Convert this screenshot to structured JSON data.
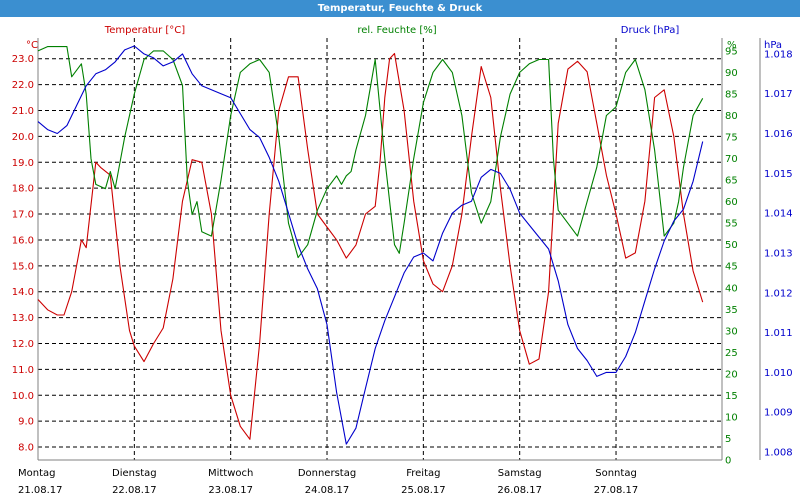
{
  "window": {
    "title": "Temperatur, Feuchte & Druck"
  },
  "chart_data": {
    "type": "line",
    "title": "Temperatur, Feuchte & Druck",
    "x_range": [
      0,
      7.1
    ],
    "grid": true,
    "x_axis": {
      "ticks": [
        {
          "day": "Montag",
          "date": "21.08.17"
        },
        {
          "day": "Dienstag",
          "date": "22.08.17"
        },
        {
          "day": "Mittwoch",
          "date": "23.08.17"
        },
        {
          "day": "Donnerstag",
          "date": "24.08.17"
        },
        {
          "day": "Freitag",
          "date": "25.08.17"
        },
        {
          "day": "Samstag",
          "date": "26.08.17"
        },
        {
          "day": "Sonntag",
          "date": "27.08.17"
        }
      ]
    },
    "axes": {
      "temperature": {
        "label": "Temperatur [°C]",
        "unit": "°C",
        "color": "#cc0000",
        "range": [
          7.5,
          23.8
        ],
        "ticks": [
          "8.0",
          "9.0",
          "10.0",
          "11.0",
          "12.0",
          "13.0",
          "14.0",
          "15.0",
          "16.0",
          "17.0",
          "18.0",
          "19.0",
          "20.0",
          "21.0",
          "22.0",
          "23.0"
        ]
      },
      "humidity": {
        "label": "rel. Feuchte [%]",
        "unit": "%",
        "color": "#008000",
        "range": [
          0,
          98
        ],
        "ticks": [
          "0",
          "5",
          "10",
          "15",
          "20",
          "25",
          "30",
          "35",
          "40",
          "45",
          "50",
          "55",
          "60",
          "65",
          "70",
          "75",
          "80",
          "85",
          "90",
          "95"
        ]
      },
      "pressure": {
        "label": "Druck [hPa]",
        "unit": "hPa",
        "color": "#0000cc",
        "range": [
          1007.8,
          1018.4
        ],
        "ticks": [
          "1.008",
          "1.009",
          "1.010",
          "1.011",
          "1.012",
          "1.013",
          "1.014",
          "1.015",
          "1.016",
          "1.017",
          "1.018"
        ]
      }
    },
    "series": [
      {
        "name": "Temperatur [°C]",
        "axis": "temperature",
        "color": "#cc0000",
        "x": [
          0,
          0.1,
          0.2,
          0.27,
          0.35,
          0.45,
          0.5,
          0.6,
          0.65,
          0.75,
          0.85,
          0.95,
          1.0,
          1.1,
          1.2,
          1.3,
          1.4,
          1.5,
          1.6,
          1.7,
          1.8,
          1.9,
          2.0,
          2.1,
          2.2,
          2.3,
          2.4,
          2.5,
          2.6,
          2.7,
          2.8,
          2.9,
          3.0,
          3.1,
          3.2,
          3.3,
          3.4,
          3.5,
          3.55,
          3.6,
          3.65,
          3.7,
          3.8,
          3.9,
          4.0,
          4.1,
          4.2,
          4.3,
          4.4,
          4.5,
          4.6,
          4.7,
          4.8,
          4.9,
          5.0,
          5.1,
          5.2,
          5.3,
          5.4,
          5.5,
          5.6,
          5.7,
          5.8,
          5.9,
          6.0,
          6.1,
          6.2,
          6.3,
          6.4,
          6.5,
          6.6,
          6.7,
          6.8,
          6.9
        ],
        "y": [
          13.7,
          13.3,
          13.1,
          13.1,
          14.0,
          16.0,
          15.7,
          19.0,
          18.8,
          18.5,
          15.0,
          12.5,
          11.9,
          11.3,
          12.0,
          12.6,
          14.5,
          17.5,
          19.1,
          19.0,
          17.0,
          12.5,
          10.0,
          8.8,
          8.3,
          12.0,
          17.0,
          21.0,
          22.3,
          22.3,
          19.5,
          17.0,
          16.5,
          16.0,
          15.3,
          15.8,
          17.0,
          17.3,
          19.0,
          21.5,
          23.0,
          23.2,
          21.0,
          17.5,
          15.2,
          14.3,
          14.0,
          15.0,
          17.0,
          20.0,
          22.7,
          21.5,
          18.0,
          15.0,
          12.5,
          11.2,
          11.4,
          14.0,
          20.5,
          22.6,
          22.9,
          22.5,
          20.5,
          18.5,
          17.0,
          15.3,
          15.5,
          17.5,
          21.5,
          21.8,
          20.0,
          17.0,
          14.8,
          13.6
        ]
      },
      {
        "name": "rel. Feuchte [%]",
        "axis": "humidity",
        "color": "#008000",
        "x": [
          0,
          0.1,
          0.2,
          0.3,
          0.35,
          0.45,
          0.5,
          0.55,
          0.6,
          0.7,
          0.75,
          0.8,
          0.9,
          1.0,
          1.1,
          1.2,
          1.3,
          1.4,
          1.5,
          1.55,
          1.6,
          1.65,
          1.7,
          1.8,
          1.9,
          2.0,
          2.1,
          2.2,
          2.3,
          2.4,
          2.5,
          2.6,
          2.7,
          2.8,
          2.9,
          3.0,
          3.1,
          3.15,
          3.2,
          3.25,
          3.3,
          3.4,
          3.5,
          3.6,
          3.7,
          3.75,
          3.8,
          3.9,
          4.0,
          4.1,
          4.2,
          4.3,
          4.4,
          4.5,
          4.6,
          4.7,
          4.8,
          4.9,
          5.0,
          5.1,
          5.2,
          5.3,
          5.35,
          5.4,
          5.5,
          5.6,
          5.7,
          5.8,
          5.9,
          6.0,
          6.1,
          6.2,
          6.3,
          6.4,
          6.5,
          6.6,
          6.65,
          6.7,
          6.8,
          6.9
        ],
        "y": [
          95,
          96,
          96,
          96,
          89,
          92,
          85,
          70,
          64,
          63,
          67,
          63,
          75,
          85,
          93,
          95,
          95,
          93,
          87,
          65,
          57,
          60,
          53,
          52,
          65,
          80,
          90,
          92,
          93,
          90,
          75,
          55,
          47,
          50,
          58,
          63,
          66,
          64,
          66,
          67,
          72,
          80,
          93,
          70,
          50,
          48,
          55,
          70,
          83,
          90,
          93,
          90,
          80,
          62,
          55,
          60,
          75,
          85,
          90,
          92,
          93,
          93,
          70,
          58,
          55,
          52,
          60,
          68,
          80,
          82,
          90,
          93,
          86,
          72,
          52,
          55,
          60,
          68,
          80,
          84
        ]
      },
      {
        "name": "Druck [hPa]",
        "axis": "pressure",
        "color": "#0000cc",
        "x": [
          0,
          0.1,
          0.2,
          0.3,
          0.4,
          0.5,
          0.6,
          0.7,
          0.8,
          0.9,
          1.0,
          1.1,
          1.2,
          1.3,
          1.4,
          1.5,
          1.6,
          1.7,
          1.8,
          1.9,
          2.0,
          2.1,
          2.2,
          2.3,
          2.4,
          2.5,
          2.6,
          2.7,
          2.8,
          2.9,
          3.0,
          3.1,
          3.2,
          3.3,
          3.4,
          3.5,
          3.6,
          3.7,
          3.8,
          3.9,
          4.0,
          4.1,
          4.2,
          4.3,
          4.4,
          4.5,
          4.6,
          4.7,
          4.8,
          4.9,
          5.0,
          5.1,
          5.2,
          5.3,
          5.4,
          5.5,
          5.6,
          5.7,
          5.8,
          5.9,
          6.0,
          6.1,
          6.2,
          6.3,
          6.4,
          6.5,
          6.6,
          6.7,
          6.8,
          6.9
        ],
        "y": [
          1016.3,
          1016.1,
          1016.0,
          1016.2,
          1016.7,
          1017.2,
          1017.5,
          1017.6,
          1017.8,
          1018.1,
          1018.2,
          1018.0,
          1017.9,
          1017.7,
          1017.8,
          1018.0,
          1017.5,
          1017.2,
          1017.1,
          1017.0,
          1016.9,
          1016.5,
          1016.1,
          1015.9,
          1015.4,
          1014.8,
          1014.0,
          1013.2,
          1012.6,
          1012.1,
          1011.2,
          1009.5,
          1008.2,
          1008.6,
          1009.6,
          1010.6,
          1011.3,
          1011.9,
          1012.5,
          1012.9,
          1013.0,
          1012.8,
          1013.5,
          1014.0,
          1014.2,
          1014.3,
          1014.9,
          1015.1,
          1015.0,
          1014.6,
          1014.0,
          1013.7,
          1013.4,
          1013.1,
          1012.3,
          1011.2,
          1010.6,
          1010.3,
          1009.9,
          1010.0,
          1010.0,
          1010.4,
          1011.0,
          1011.8,
          1012.6,
          1013.3,
          1013.8,
          1014.1,
          1014.8,
          1015.8
        ]
      }
    ]
  }
}
